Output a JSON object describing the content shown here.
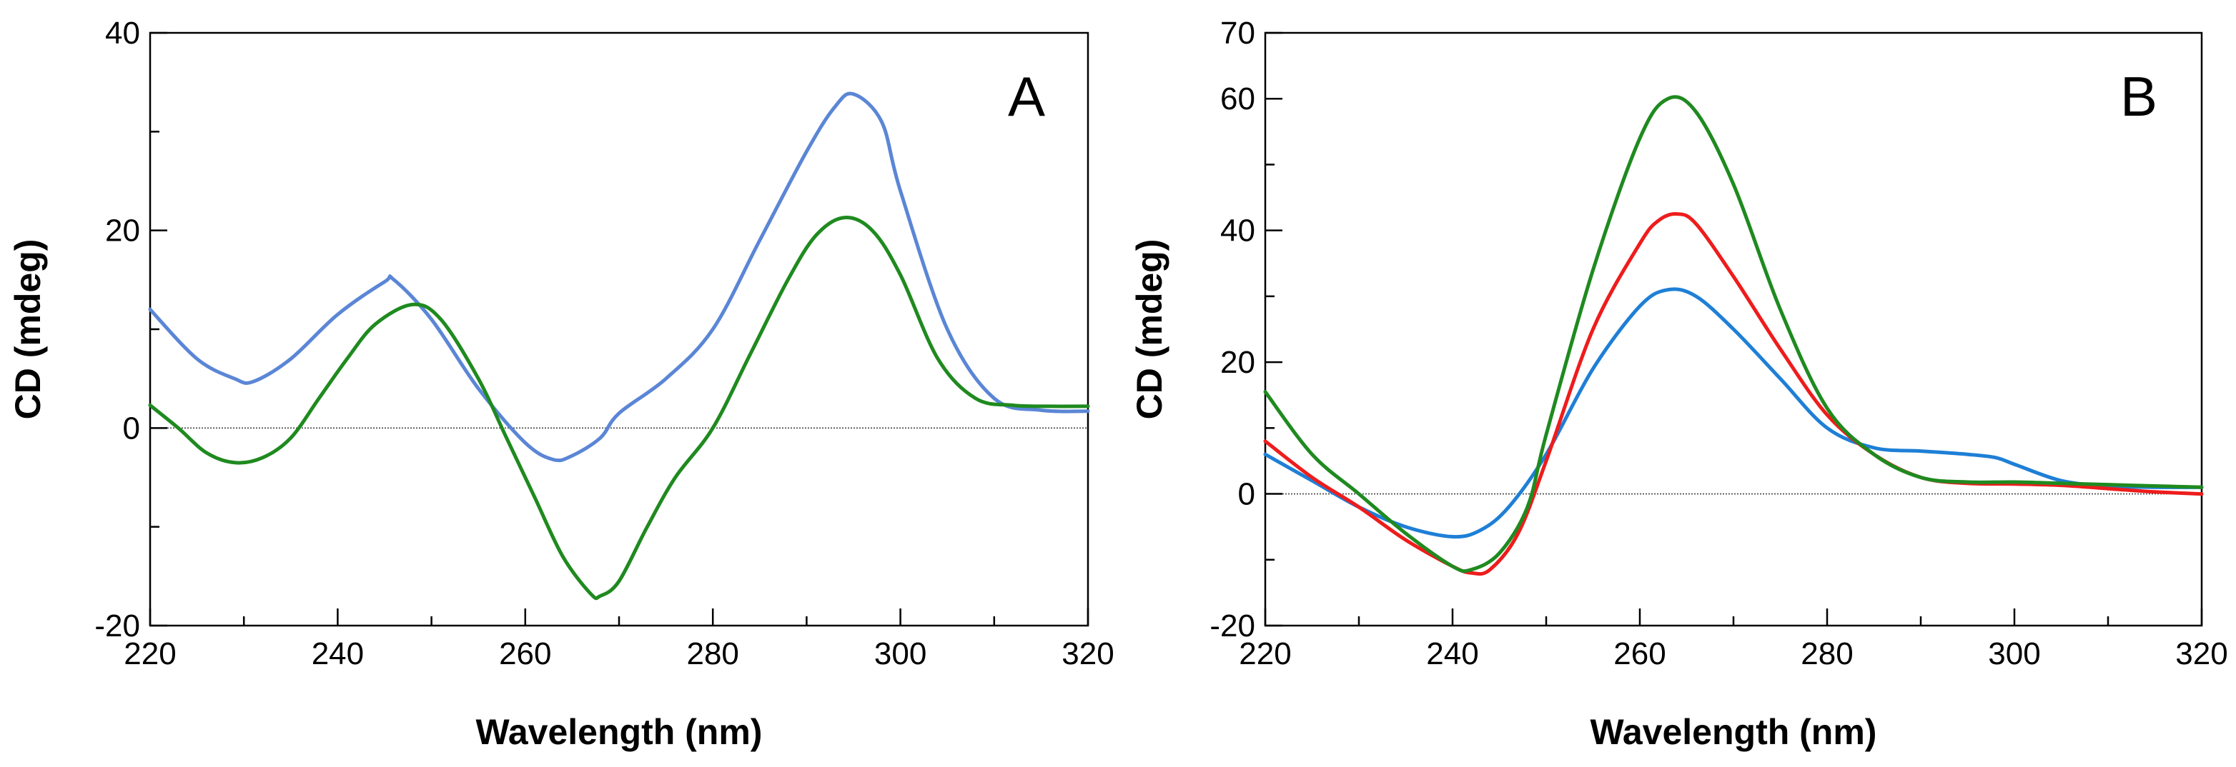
{
  "chart_data": [
    {
      "type": "line",
      "panel_label": "A",
      "xlabel": "Wavelength (nm)",
      "ylabel": "CD (mdeg)",
      "xlim": [
        220,
        320
      ],
      "ylim": [
        -20,
        40
      ],
      "xticks": [
        220,
        240,
        260,
        280,
        300,
        320
      ],
      "xminor": [
        230,
        250,
        270,
        290,
        310
      ],
      "yticks": [
        -20,
        0,
        20,
        40
      ],
      "yminor": [
        -10,
        10,
        30
      ],
      "zero_line": true,
      "grid": false,
      "series": [
        {
          "name": "blue",
          "color": "#5b86d6",
          "x": [
            220,
            225,
            229,
            231,
            235,
            240,
            245,
            246,
            250,
            255,
            260,
            263,
            265,
            268,
            270,
            275,
            280,
            285,
            290,
            293,
            295,
            298,
            300,
            305,
            310,
            315,
            320
          ],
          "y": [
            12,
            7,
            5,
            4.7,
            7,
            11.5,
            14.8,
            15,
            11,
            4,
            -1.5,
            -3.2,
            -2.8,
            -1,
            1.5,
            5,
            10,
            19,
            28,
            32.5,
            33.8,
            31,
            24,
            10,
            3,
            1.8,
            1.7
          ]
        },
        {
          "name": "green",
          "color": "#1f8a1f",
          "x": [
            220,
            223,
            226,
            229,
            232,
            235,
            238,
            241,
            244,
            248,
            251,
            255,
            258,
            261,
            264,
            267,
            268,
            270,
            273,
            276,
            280,
            284,
            288,
            291,
            294,
            297,
            300,
            304,
            308,
            312,
            316,
            320
          ],
          "y": [
            2.3,
            0,
            -2.5,
            -3.5,
            -3,
            -1,
            3,
            7,
            10.5,
            12.5,
            11,
            5,
            -1,
            -7,
            -13,
            -16.8,
            -17,
            -15.5,
            -10,
            -5,
            0,
            7.5,
            15,
            19.5,
            21.3,
            20,
            15.5,
            7,
            3,
            2.3,
            2.2,
            2.2
          ]
        }
      ]
    },
    {
      "type": "line",
      "panel_label": "B",
      "xlabel": "Wavelength (nm)",
      "ylabel": "CD (mdeg)",
      "xlim": [
        220,
        320
      ],
      "ylim": [
        -20,
        70
      ],
      "xticks": [
        220,
        240,
        260,
        280,
        300,
        320
      ],
      "xminor": [
        230,
        250,
        270,
        290,
        310
      ],
      "yticks": [
        -20,
        0,
        20,
        40,
        60,
        70
      ],
      "yminor": [
        -10,
        10,
        30,
        50
      ],
      "zero_line": true,
      "grid": false,
      "series": [
        {
          "name": "blue",
          "color": "#1e7fd6",
          "x": [
            220,
            225,
            230,
            235,
            240,
            243,
            246,
            250,
            255,
            260,
            263,
            266,
            270,
            275,
            280,
            285,
            290,
            295,
            298,
            300,
            305,
            310,
            315,
            320
          ],
          "y": [
            6,
            2,
            -2,
            -5,
            -6.5,
            -5.5,
            -2,
            6,
            19,
            28.5,
            31,
            30,
            25,
            17.5,
            10,
            7,
            6.5,
            6,
            5.5,
            4.5,
            2,
            1.2,
            1,
            1
          ]
        },
        {
          "name": "red",
          "color": "#ee1c1c",
          "x": [
            220,
            225,
            230,
            235,
            240,
            242,
            244,
            247,
            250,
            255,
            260,
            262,
            264,
            266,
            270,
            275,
            280,
            285,
            290,
            295,
            300,
            305,
            310,
            315,
            320
          ],
          "y": [
            8,
            2.5,
            -2,
            -7,
            -11,
            -12,
            -11.5,
            -6,
            5,
            25,
            38,
            41.5,
            42.5,
            41,
            33,
            22,
            12,
            6,
            2.5,
            1.6,
            1.5,
            1.3,
            0.8,
            0.3,
            0
          ],
          "note": "red dips slightly below green near 243 nm"
        },
        {
          "name": "green",
          "color": "#1f8a1f",
          "x": [
            220,
            225,
            230,
            235,
            240,
            242,
            245,
            248,
            250,
            255,
            260,
            263,
            266,
            270,
            275,
            280,
            285,
            290,
            295,
            300,
            305,
            310,
            315,
            320
          ],
          "y": [
            15.5,
            6,
            0,
            -6,
            -11,
            -11.5,
            -9,
            -2,
            9,
            34,
            54,
            60,
            58,
            47,
            28,
            13,
            6,
            2.5,
            1.8,
            1.8,
            1.6,
            1.4,
            1.2,
            1
          ]
        }
      ]
    }
  ]
}
